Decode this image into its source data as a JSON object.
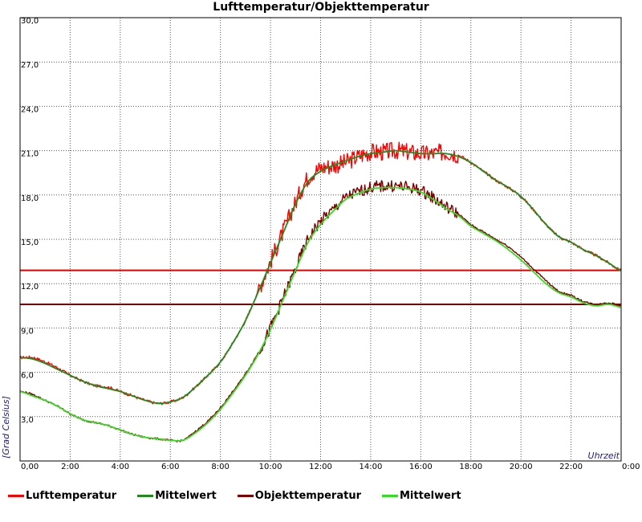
{
  "chart_data": {
    "type": "line",
    "title": "Lufttemperatur/Objekttemperatur",
    "xlabel": "Uhrzeit",
    "ylabel": "[Grad Celsius]",
    "xlim": [
      0,
      24
    ],
    "ylim": [
      0,
      30
    ],
    "x_ticks": [
      {
        "value": 0,
        "label": "0,00"
      },
      {
        "value": 2,
        "label": "2:00"
      },
      {
        "value": 4,
        "label": "4:00"
      },
      {
        "value": 6,
        "label": "6:00"
      },
      {
        "value": 8,
        "label": "8:00"
      },
      {
        "value": 10,
        "label": "10:00"
      },
      {
        "value": 12,
        "label": "12:00"
      },
      {
        "value": 14,
        "label": "14:00"
      },
      {
        "value": 16,
        "label": "16:00"
      },
      {
        "value": 18,
        "label": "18:00"
      },
      {
        "value": 20,
        "label": "20:00"
      },
      {
        "value": 22,
        "label": "22:00"
      },
      {
        "value": 24,
        "label": "0:00"
      }
    ],
    "y_ticks": [
      {
        "value": 3,
        "label": "3,0"
      },
      {
        "value": 6,
        "label": "6,0"
      },
      {
        "value": 9,
        "label": "9,0"
      },
      {
        "value": 12,
        "label": "12,0"
      },
      {
        "value": 15,
        "label": "15,0"
      },
      {
        "value": 18,
        "label": "18,0"
      },
      {
        "value": 21,
        "label": "21,0"
      },
      {
        "value": 24,
        "label": "24,0"
      },
      {
        "value": 27,
        "label": "27,0"
      },
      {
        "value": 30,
        "label": "30,0"
      }
    ],
    "grid": true,
    "legend_position": "bottom",
    "series": [
      {
        "name": "Lufttemperatur",
        "color": "#ff0000",
        "x": [
          0,
          0.5,
          1,
          1.5,
          2,
          2.5,
          3,
          3.5,
          4,
          4.5,
          5,
          5.5,
          6,
          6.5,
          7,
          7.5,
          8,
          8.5,
          9,
          9.5,
          10,
          10.5,
          11,
          11.5,
          12,
          12.5,
          13,
          13.5,
          14,
          14.5,
          15,
          15.5,
          16,
          16.5,
          17,
          17.5,
          18,
          18.5,
          19,
          19.5,
          20,
          20.5,
          21,
          21.5,
          22,
          22.5,
          23,
          23.5,
          24
        ],
        "y": [
          7.0,
          7.0,
          6.7,
          6.3,
          5.8,
          5.4,
          5.1,
          5.0,
          4.7,
          4.4,
          4.1,
          3.9,
          4.0,
          4.3,
          5.0,
          5.8,
          6.7,
          8.0,
          9.5,
          11.5,
          13.5,
          15.5,
          17.5,
          19.2,
          19.8,
          20.0,
          20.2,
          20.6,
          20.9,
          20.9,
          21.0,
          20.9,
          20.8,
          20.8,
          20.9,
          20.7,
          20.2,
          19.6,
          19.0,
          18.5,
          17.9,
          17.0,
          16.0,
          15.2,
          14.8,
          14.3,
          13.9,
          13.4,
          12.9
        ],
        "noise": 0.6
      },
      {
        "name": "Mittelwert",
        "color": "#1e8c1e",
        "x": [
          0,
          0.5,
          1,
          1.5,
          2,
          2.5,
          3,
          3.5,
          4,
          4.5,
          5,
          5.5,
          6,
          6.5,
          7,
          7.5,
          8,
          8.5,
          9,
          9.5,
          10,
          10.5,
          11,
          11.5,
          12,
          12.5,
          13,
          13.5,
          14,
          14.5,
          15,
          15.5,
          16,
          16.5,
          17,
          17.5,
          18,
          18.5,
          19,
          19.5,
          20,
          20.5,
          21,
          21.5,
          22,
          22.5,
          23,
          23.5,
          24
        ],
        "y": [
          7.0,
          6.9,
          6.6,
          6.2,
          5.8,
          5.4,
          5.1,
          4.9,
          4.7,
          4.4,
          4.1,
          3.9,
          4.0,
          4.3,
          5.0,
          5.8,
          6.7,
          8.0,
          9.5,
          11.4,
          13.4,
          15.4,
          17.4,
          18.9,
          19.6,
          20.0,
          20.3,
          20.6,
          20.8,
          20.9,
          21.0,
          20.9,
          20.8,
          20.8,
          20.8,
          20.6,
          20.2,
          19.6,
          19.0,
          18.5,
          17.9,
          17.0,
          16.0,
          15.2,
          14.8,
          14.3,
          13.9,
          13.4,
          12.9
        ],
        "noise": 0
      },
      {
        "name": "Objekttemperatur",
        "color": "#800000",
        "x": [
          0,
          0.5,
          1,
          1.5,
          2,
          2.5,
          3,
          3.5,
          4,
          4.5,
          5,
          5.5,
          6,
          6.5,
          7,
          7.5,
          8,
          8.5,
          9,
          9.5,
          10,
          10.5,
          11,
          11.5,
          12,
          12.5,
          13,
          13.5,
          14,
          14.5,
          15,
          15.5,
          16,
          16.5,
          17,
          17.5,
          18,
          18.5,
          19,
          19.5,
          20,
          20.5,
          21,
          21.5,
          22,
          22.5,
          23,
          23.5,
          24
        ],
        "y": [
          4.7,
          4.5,
          4.1,
          3.7,
          3.2,
          2.8,
          2.6,
          2.4,
          2.1,
          1.8,
          1.6,
          1.5,
          1.4,
          1.4,
          2.0,
          2.7,
          3.6,
          4.7,
          5.9,
          7.3,
          9.0,
          11.0,
          13.0,
          15.0,
          16.2,
          17.0,
          17.8,
          18.2,
          18.5,
          18.6,
          18.6,
          18.5,
          18.3,
          17.8,
          17.2,
          16.7,
          16.0,
          15.5,
          15.0,
          14.5,
          13.8,
          13.0,
          12.2,
          11.5,
          11.2,
          10.8,
          10.6,
          10.7,
          10.5
        ],
        "noise": 0.4
      },
      {
        "name": "Mittelwert",
        "color": "#33dd22",
        "x": [
          0,
          0.5,
          1,
          1.5,
          2,
          2.5,
          3,
          3.5,
          4,
          4.5,
          5,
          5.5,
          6,
          6.5,
          7,
          7.5,
          8,
          8.5,
          9,
          9.5,
          10,
          10.5,
          11,
          11.5,
          12,
          12.5,
          13,
          13.5,
          14,
          14.5,
          15,
          15.5,
          16,
          16.5,
          17,
          17.5,
          18,
          18.5,
          19,
          19.5,
          20,
          20.5,
          21,
          21.5,
          22,
          22.5,
          23,
          23.5,
          24
        ],
        "y": [
          4.7,
          4.4,
          4.1,
          3.7,
          3.2,
          2.8,
          2.6,
          2.4,
          2.1,
          1.8,
          1.6,
          1.5,
          1.4,
          1.4,
          1.9,
          2.6,
          3.5,
          4.6,
          5.8,
          7.2,
          8.9,
          10.9,
          12.9,
          14.8,
          16.0,
          16.9,
          17.7,
          18.1,
          18.4,
          18.5,
          18.5,
          18.4,
          18.2,
          17.7,
          17.1,
          16.6,
          15.9,
          15.4,
          14.9,
          14.3,
          13.6,
          12.8,
          12.0,
          11.4,
          11.1,
          10.7,
          10.5,
          10.6,
          10.4
        ],
        "noise": 0
      }
    ],
    "reference_lines": [
      {
        "y": 12.9,
        "color": "#dd0000"
      },
      {
        "y": 10.6,
        "color": "#800000"
      }
    ]
  }
}
